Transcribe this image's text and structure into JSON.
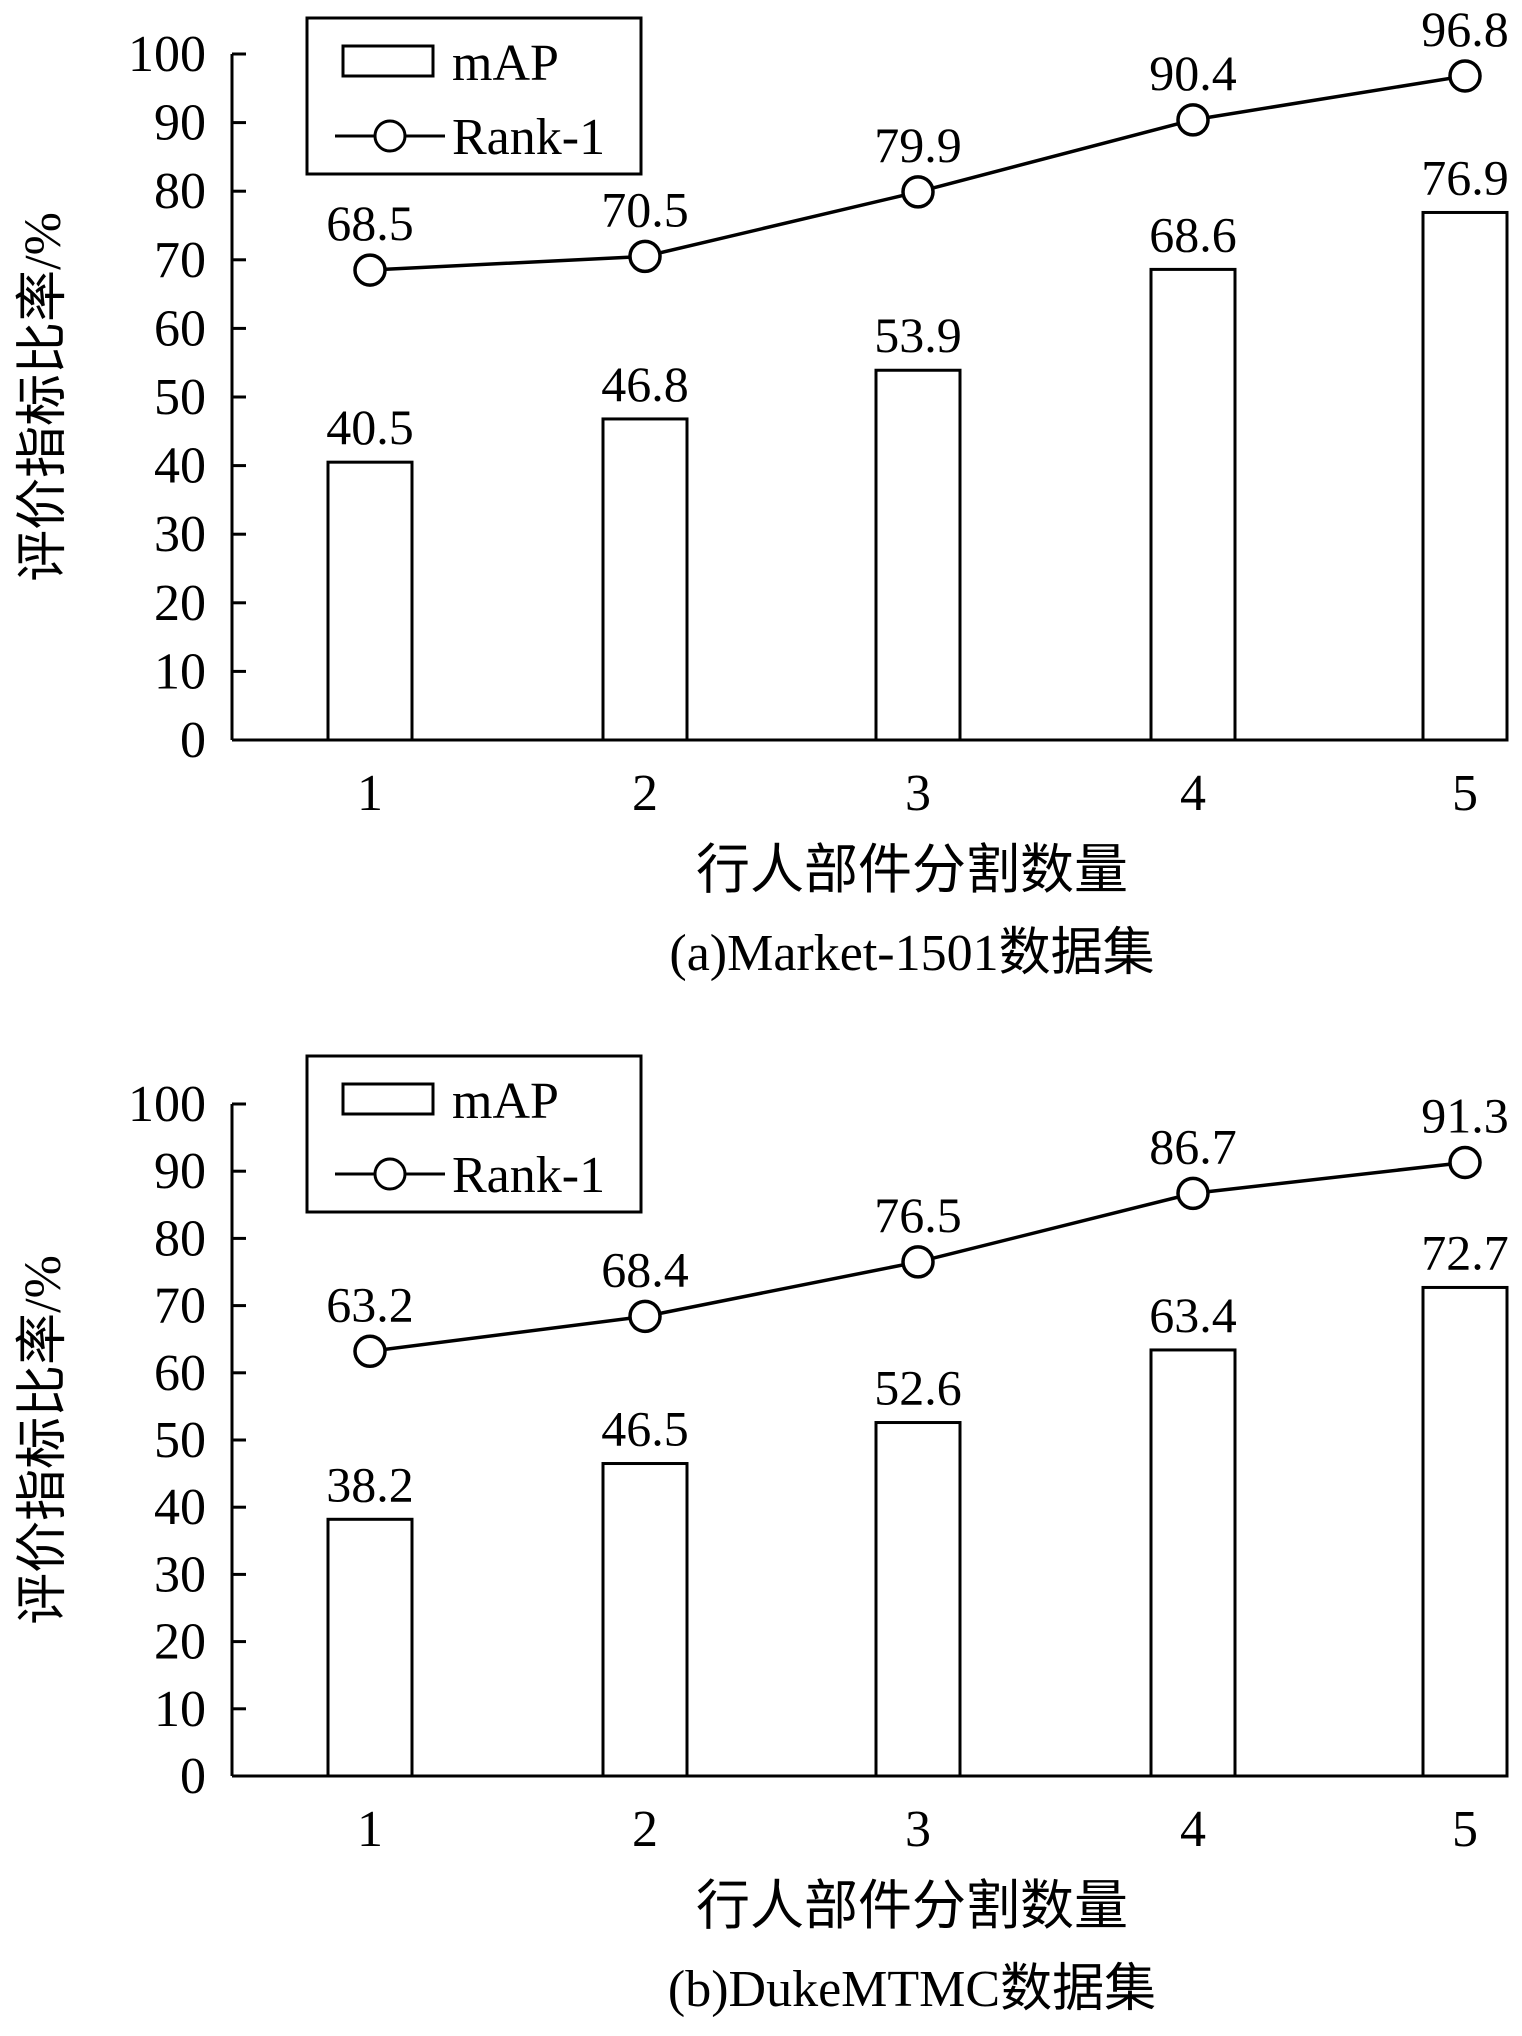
{
  "chart_data": [
    {
      "type": "bar+line",
      "caption": "(a)Market-1501数据集",
      "xlabel": "行人部件分割数量",
      "ylabel": "评价指标比率/%",
      "categories": [
        "1",
        "2",
        "3",
        "4",
        "5"
      ],
      "ylim": [
        0,
        100
      ],
      "yticks": [
        "0",
        "10",
        "20",
        "30",
        "40",
        "50",
        "60",
        "70",
        "80",
        "90",
        "100"
      ],
      "legend": {
        "position": "top-left",
        "items": [
          "mAP",
          "Rank-1"
        ]
      },
      "series": [
        {
          "name": "mAP",
          "kind": "bar",
          "values": [
            40.5,
            46.8,
            53.9,
            68.6,
            76.9
          ],
          "labels": [
            "40.5",
            "46.8",
            "53.9",
            "68.6",
            "76.9"
          ]
        },
        {
          "name": "Rank-1",
          "kind": "line",
          "marker": "circle",
          "values": [
            68.5,
            70.5,
            79.9,
            90.4,
            96.8
          ],
          "labels": [
            "68.5",
            "70.5",
            "79.9",
            "90.4",
            "96.8"
          ]
        }
      ],
      "grid": false
    },
    {
      "type": "bar+line",
      "caption": "(b)DukeMTMC数据集",
      "xlabel": "行人部件分割数量",
      "ylabel": "评价指标比率/%",
      "categories": [
        "1",
        "2",
        "3",
        "4",
        "5"
      ],
      "ylim": [
        0,
        100
      ],
      "yticks": [
        "0",
        "10",
        "20",
        "30",
        "40",
        "50",
        "60",
        "70",
        "80",
        "90",
        "100"
      ],
      "legend": {
        "position": "top-left",
        "items": [
          "mAP",
          "Rank-1"
        ]
      },
      "series": [
        {
          "name": "mAP",
          "kind": "bar",
          "values": [
            38.2,
            46.5,
            52.6,
            63.4,
            72.7
          ],
          "labels": [
            "38.2",
            "46.5",
            "52.6",
            "63.4",
            "72.7"
          ]
        },
        {
          "name": "Rank-1",
          "kind": "line",
          "marker": "circle",
          "values": [
            63.2,
            68.4,
            76.5,
            86.7,
            91.3
          ],
          "labels": [
            "63.2",
            "68.4",
            "76.5",
            "86.7",
            "91.3"
          ]
        }
      ],
      "grid": false
    }
  ]
}
